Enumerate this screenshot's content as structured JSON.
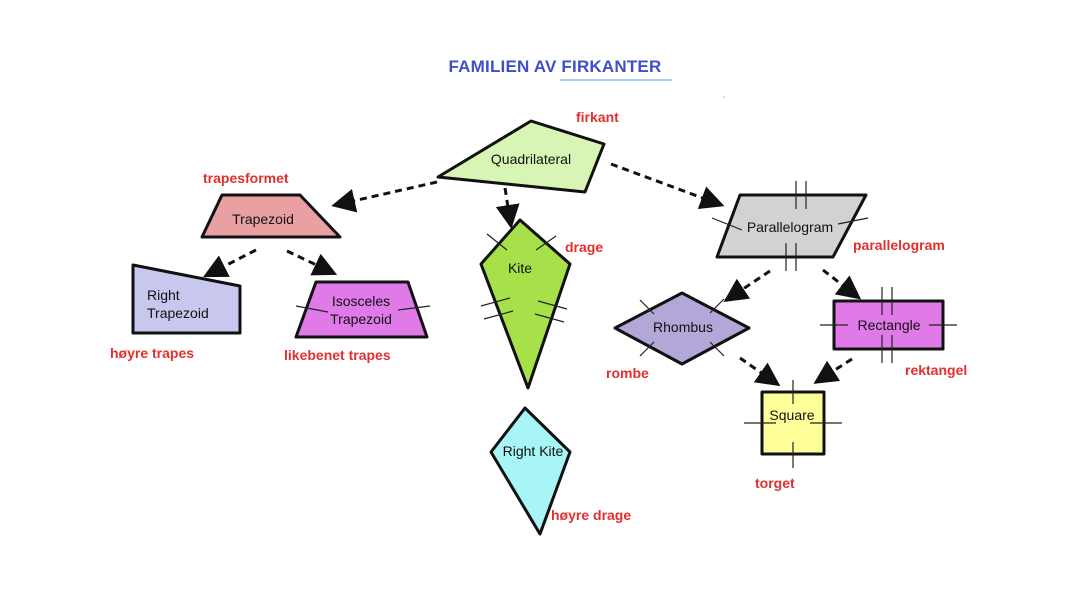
{
  "title": "FAMILIEN AV FIRKANTER",
  "colors": {
    "title": "#3f4fc9",
    "norwegian_label": "#e03030",
    "quadrilateral": "#d8f5b5",
    "trapezoid": "#e8a0a3",
    "right_trapezoid": "#c8c8ee",
    "isosceles_trapezoid": "#e07ae8",
    "kite": "#a8e04a",
    "right_kite": "#a8f5f7",
    "parallelogram": "#d2d2d2",
    "rhombus": "#b3a7d8",
    "rectangle": "#e07ae8",
    "square": "#ffff99"
  },
  "shapes": {
    "quadrilateral": {
      "label": "Quadrilateral",
      "norwegian": "firkant"
    },
    "trapezoid": {
      "label": "Trapezoid",
      "norwegian": "trapesformet"
    },
    "right_trapezoid": {
      "label_line1": "Right",
      "label_line2": "Trapezoid",
      "norwegian": "høyre trapes"
    },
    "isosceles_trapezoid": {
      "label_line1": "Isosceles",
      "label_line2": "Trapezoid",
      "norwegian": "likebenet trapes"
    },
    "kite": {
      "label": "Kite",
      "norwegian": "drage"
    },
    "right_kite": {
      "label": "Right Kite",
      "norwegian": "høyre drage"
    },
    "parallelogram": {
      "label": "Parallelogram",
      "norwegian": "parallelogram"
    },
    "rhombus": {
      "label": "Rhombus",
      "norwegian": "rombe"
    },
    "rectangle": {
      "label": "Rectangle",
      "norwegian": "rektangel"
    },
    "square": {
      "label": "Square",
      "norwegian": "torget"
    }
  },
  "relations": [
    {
      "from": "quadrilateral",
      "to": "trapezoid"
    },
    {
      "from": "quadrilateral",
      "to": "kite"
    },
    {
      "from": "quadrilateral",
      "to": "parallelogram"
    },
    {
      "from": "trapezoid",
      "to": "right_trapezoid"
    },
    {
      "from": "trapezoid",
      "to": "isosceles_trapezoid"
    },
    {
      "from": "parallelogram",
      "to": "rhombus"
    },
    {
      "from": "parallelogram",
      "to": "rectangle"
    },
    {
      "from": "rhombus",
      "to": "square"
    },
    {
      "from": "rectangle",
      "to": "square"
    }
  ]
}
